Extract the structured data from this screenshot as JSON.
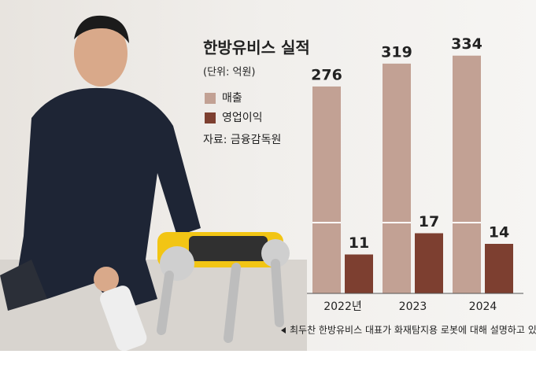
{
  "chart_data": {
    "type": "bar",
    "title": "한방유비스 실적",
    "subtitle": "(단위: 억원)",
    "source": "자료: 금융감독원",
    "caption": "최두찬 한방유비스 대표가 화재탐지용 로봇에 대해 설명하고 있다",
    "categories": [
      "2022년",
      "2023",
      "2024"
    ],
    "series": [
      {
        "name": "매출",
        "color": "#c2a194",
        "values": [
          276,
          319,
          334
        ]
      },
      {
        "name": "영업이익",
        "color": "#7d3f30",
        "values": [
          11,
          17,
          14
        ]
      }
    ]
  }
}
